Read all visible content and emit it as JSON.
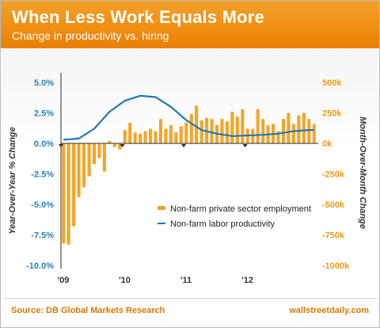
{
  "header": {
    "title": "When Less Work Equals More",
    "subtitle": "Change in productivity vs. hiring"
  },
  "footer": {
    "source": "Source: DB Global Markets Research",
    "brand": "wallstreetdaily.com"
  },
  "colors": {
    "bars": "#f3a52a",
    "line": "#1f77b4",
    "left_ticks": "#2a81b8",
    "right_ticks": "#ef9a14"
  },
  "chart_data": {
    "type": "bar+line",
    "x_ticks": [
      "'09",
      "'10",
      "'11",
      "'12"
    ],
    "y_left": {
      "label": "Year-Over-Year % Change",
      "range": [
        -10,
        5
      ],
      "ticks": [
        "5.0%",
        "2.5%",
        "0.0%",
        "-2.5%",
        "-5.0%",
        "-7.5%",
        "-10.0%"
      ],
      "tick_values": [
        5,
        2.5,
        0,
        -2.5,
        -5,
        -7.5,
        -10
      ]
    },
    "y_right": {
      "label": "Month-Over-Month Change",
      "range": [
        -1000,
        500
      ],
      "ticks": [
        "500k",
        "250k",
        "0k",
        "-250k",
        "-500k",
        "-750k",
        "-1000k"
      ],
      "tick_values": [
        500,
        250,
        0,
        -250,
        -500,
        -750,
        -1000
      ]
    },
    "series": [
      {
        "name": "Non-farm private sector employment",
        "type": "bar",
        "axis": "right",
        "values": [
          -820,
          -830,
          -680,
          -440,
          -360,
          -270,
          -170,
          -120,
          -230,
          20,
          -30,
          -50,
          110,
          170,
          90,
          80,
          100,
          120,
          100,
          200,
          120,
          150,
          90,
          140,
          170,
          240,
          310,
          190,
          210,
          200,
          150,
          200,
          180,
          260,
          220,
          280,
          120,
          120,
          280,
          200,
          150,
          160,
          100,
          200,
          250,
          160,
          230,
          250,
          200,
          160
        ]
      },
      {
        "name": "Non-farm labor productivity",
        "type": "line",
        "axis": "left",
        "x": [
          0,
          3,
          6,
          9,
          12,
          15,
          18,
          21,
          24,
          27,
          30,
          33,
          36,
          39,
          42,
          45,
          48,
          49
        ],
        "values": [
          0.3,
          0.4,
          1.2,
          2.6,
          3.5,
          3.9,
          3.8,
          3.0,
          1.9,
          1.1,
          0.8,
          0.6,
          0.65,
          0.7,
          0.8,
          1.0,
          1.1,
          1.1
        ]
      }
    ],
    "legend_position": "center-right",
    "grid": false
  }
}
